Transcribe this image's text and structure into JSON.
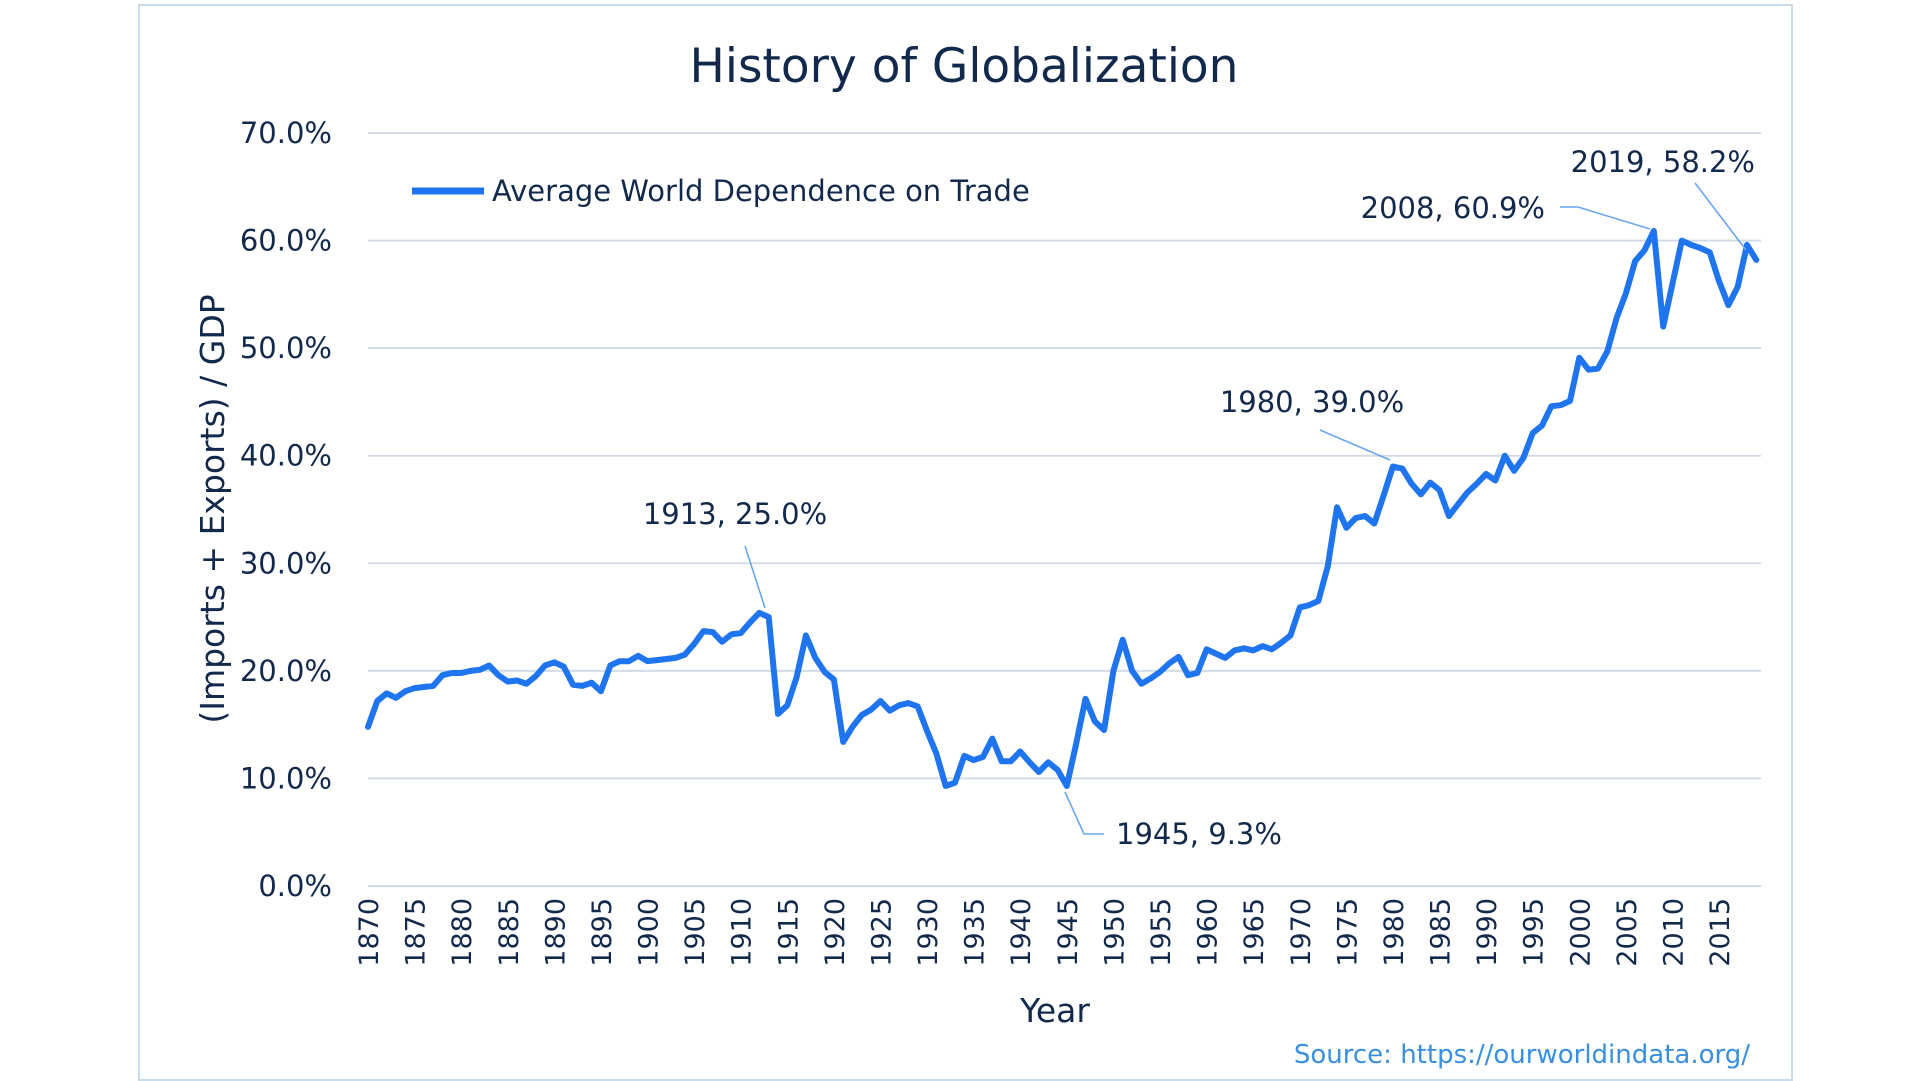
{
  "chart_data": {
    "type": "line",
    "title": "History of Globalization",
    "xlabel": "Year",
    "ylabel": "(Imports + Exports) / GDP",
    "ylim": [
      0,
      70
    ],
    "yticks": [
      "0.0%",
      "10.0%",
      "20.0%",
      "30.0%",
      "40.0%",
      "50.0%",
      "60.0%",
      "70.0%"
    ],
    "xticks": [
      "1870",
      "1875",
      "1880",
      "1885",
      "1890",
      "1895",
      "1900",
      "1905",
      "1910",
      "1915",
      "1920",
      "1925",
      "1930",
      "1935",
      "1940",
      "1945",
      "1950",
      "1955",
      "1960",
      "1965",
      "1970",
      "1975",
      "1980",
      "1985",
      "1990",
      "1995",
      "2000",
      "2005",
      "2010",
      "2015"
    ],
    "grid": "horizontal",
    "legend_position": "top-left",
    "color": "#1f74f0",
    "series": [
      {
        "name": "Average World Dependence on Trade",
        "x": [
          1870,
          1871,
          1872,
          1873,
          1874,
          1875,
          1876,
          1877,
          1878,
          1879,
          1880,
          1881,
          1882,
          1883,
          1884,
          1885,
          1886,
          1887,
          1888,
          1889,
          1890,
          1891,
          1892,
          1893,
          1894,
          1895,
          1896,
          1897,
          1898,
          1899,
          1900,
          1901,
          1902,
          1903,
          1904,
          1905,
          1906,
          1907,
          1908,
          1909,
          1910,
          1911,
          1912,
          1913,
          1914,
          1915,
          1916,
          1917,
          1918,
          1919,
          1920,
          1921,
          1922,
          1923,
          1924,
          1925,
          1926,
          1927,
          1928,
          1929,
          1930,
          1931,
          1932,
          1933,
          1934,
          1935,
          1936,
          1937,
          1938,
          1939,
          1940,
          1941,
          1942,
          1943,
          1944,
          1945,
          1946,
          1947,
          1948,
          1949,
          1950,
          1951,
          1952,
          1953,
          1954,
          1955,
          1956,
          1957,
          1958,
          1959,
          1960,
          1961,
          1962,
          1963,
          1964,
          1965,
          1966,
          1967,
          1968,
          1969,
          1970,
          1971,
          1972,
          1973,
          1974,
          1975,
          1976,
          1977,
          1978,
          1979,
          1980,
          1981,
          1982,
          1983,
          1984,
          1985,
          1986,
          1987,
          1988,
          1989,
          1990,
          1991,
          1992,
          1993,
          1994,
          1995,
          1996,
          1997,
          1998,
          1999,
          2000,
          2001,
          2002,
          2003,
          2004,
          2005,
          2006,
          2007,
          2008,
          2009,
          2010,
          2011,
          2012,
          2013,
          2014,
          2015,
          2016,
          2017,
          2018,
          2019
        ],
        "y": [
          14.8,
          17.2,
          17.9,
          17.5,
          18.1,
          18.4,
          18.5,
          18.6,
          19.6,
          19.8,
          19.8,
          20.0,
          20.1,
          20.5,
          19.6,
          19.0,
          19.1,
          18.8,
          19.5,
          20.5,
          20.8,
          20.4,
          18.7,
          18.6,
          18.9,
          18.1,
          20.5,
          20.9,
          20.9,
          21.4,
          20.9,
          21.0,
          21.1,
          21.2,
          21.5,
          22.5,
          23.7,
          23.6,
          22.7,
          23.4,
          23.5,
          24.5,
          25.4,
          25.0,
          16.0,
          16.8,
          19.4,
          23.3,
          21.2,
          19.9,
          19.2,
          13.4,
          14.8,
          15.9,
          16.4,
          17.2,
          16.3,
          16.8,
          17.0,
          16.7,
          14.4,
          12.3,
          9.3,
          9.6,
          12.1,
          11.7,
          12.0,
          13.7,
          11.6,
          11.6,
          12.5,
          11.5,
          10.6,
          11.5,
          10.8,
          9.3,
          13.2,
          17.4,
          15.3,
          14.5,
          20.0,
          22.9,
          20.0,
          18.8,
          19.3,
          19.9,
          20.7,
          21.3,
          19.6,
          19.8,
          22.0,
          21.6,
          21.2,
          21.9,
          22.1,
          21.9,
          22.3,
          22.0,
          22.6,
          23.3,
          25.9,
          26.1,
          26.5,
          29.7,
          35.2,
          33.3,
          34.2,
          34.4,
          33.7,
          36.3,
          39.0,
          38.8,
          37.4,
          36.4,
          37.5,
          36.8,
          34.4,
          35.5,
          36.6,
          37.4,
          38.3,
          37.7,
          40.0,
          38.6,
          39.8,
          42.1,
          42.8,
          44.6,
          44.7,
          45.1,
          49.1,
          48.0,
          48.1,
          49.7,
          52.8,
          55.1,
          58.1,
          59.1,
          60.9,
          52.0,
          56.0,
          60.0,
          59.6,
          59.3,
          58.9,
          56.2,
          54.0,
          55.7,
          59.6,
          58.2
        ]
      }
    ],
    "annotations": [
      {
        "year": 1913,
        "value": 25.0,
        "label": "1913, 25.0%"
      },
      {
        "year": 1945,
        "value": 9.3,
        "label": "1945, 9.3%"
      },
      {
        "year": 1980,
        "value": 39.0,
        "label": "1980, 39.0%"
      },
      {
        "year": 2008,
        "value": 60.9,
        "label": "2008, 60.9%"
      },
      {
        "year": 2019,
        "value": 58.2,
        "label": "2019, 58.2%"
      }
    ]
  },
  "source": "Source: https://ourworldindata.org/"
}
